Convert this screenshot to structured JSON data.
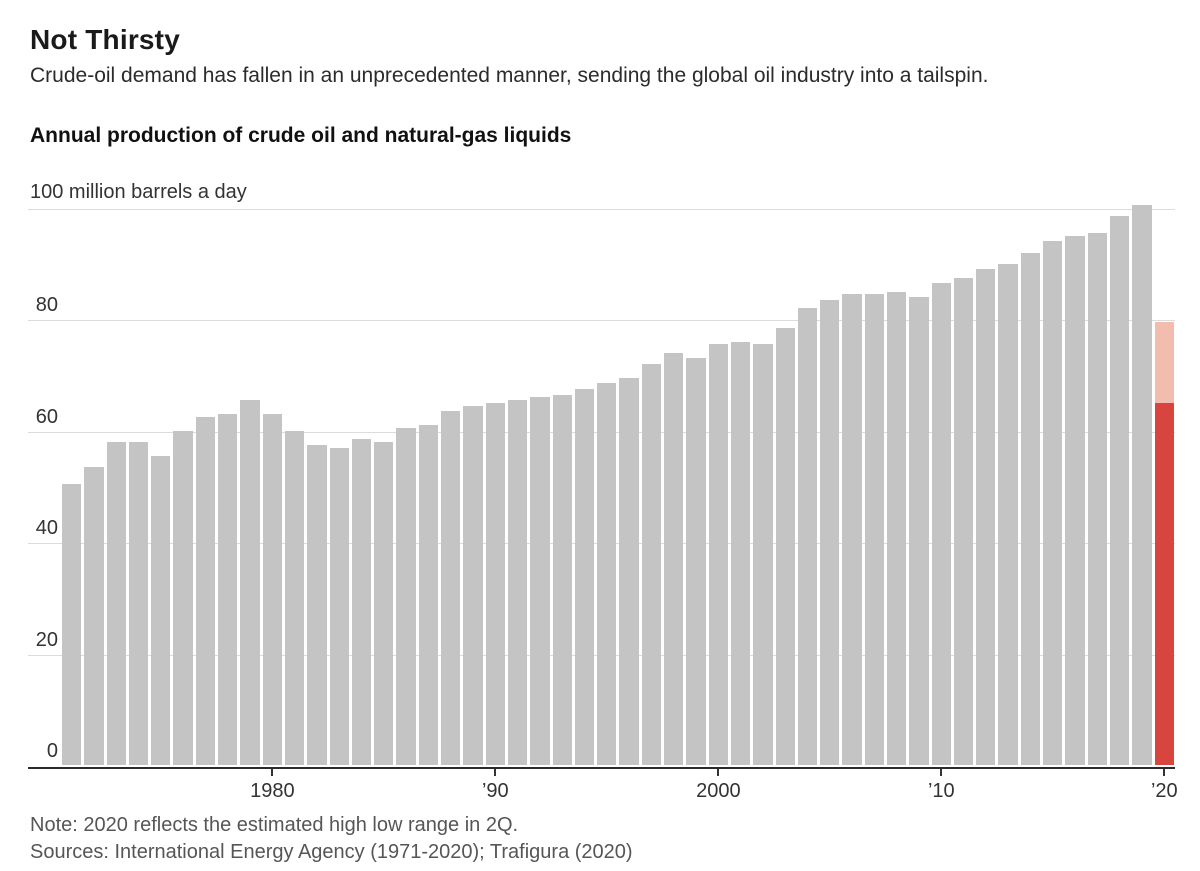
{
  "header": {
    "title": "Not Thirsty",
    "subtitle": "Crude-oil demand has fallen in an unprecedented manner, sending the global oil industry into a tailspin."
  },
  "chart_data": {
    "type": "bar",
    "title": "Not Thirsty",
    "subtitle": "Crude-oil demand has fallen in an unprecedented manner, sending the global oil industry into a tailspin.",
    "series_label": "Annual production of crude oil and natural-gas liquids",
    "unit_label": "100 million barrels a day",
    "ylabel": "million barrels a day",
    "ylim": [
      0,
      100
    ],
    "yticks": [
      0,
      20,
      40,
      60,
      80,
      100
    ],
    "grid": "horizontal",
    "legend_position": "none",
    "xticks": [
      {
        "year": 1980,
        "label": "1980"
      },
      {
        "year": 1990,
        "label": "’90"
      },
      {
        "year": 2000,
        "label": "2000"
      },
      {
        "year": 2010,
        "label": "’10"
      },
      {
        "year": 2020,
        "label": "’20"
      }
    ],
    "colors": {
      "bar": "#c4c4c4",
      "estimate_low": "#d8453f",
      "estimate_high": "#f2bcae",
      "gridline": "#dcdcdc",
      "axis": "#2b2b2b"
    },
    "bars": [
      {
        "year": 1971,
        "value": 50.5
      },
      {
        "year": 1972,
        "value": 53.5
      },
      {
        "year": 1973,
        "value": 58
      },
      {
        "year": 1974,
        "value": 58
      },
      {
        "year": 1975,
        "value": 55.5
      },
      {
        "year": 1976,
        "value": 60
      },
      {
        "year": 1977,
        "value": 62.5
      },
      {
        "year": 1978,
        "value": 63
      },
      {
        "year": 1979,
        "value": 65.5
      },
      {
        "year": 1980,
        "value": 63
      },
      {
        "year": 1981,
        "value": 60
      },
      {
        "year": 1982,
        "value": 57.5
      },
      {
        "year": 1983,
        "value": 57
      },
      {
        "year": 1984,
        "value": 58.5
      },
      {
        "year": 1985,
        "value": 58
      },
      {
        "year": 1986,
        "value": 60.5
      },
      {
        "year": 1987,
        "value": 61
      },
      {
        "year": 1988,
        "value": 63.5
      },
      {
        "year": 1989,
        "value": 64.5
      },
      {
        "year": 1990,
        "value": 65
      },
      {
        "year": 1991,
        "value": 65.5
      },
      {
        "year": 1992,
        "value": 66
      },
      {
        "year": 1993,
        "value": 66.5
      },
      {
        "year": 1994,
        "value": 67.5
      },
      {
        "year": 1995,
        "value": 68.5
      },
      {
        "year": 1996,
        "value": 69.5
      },
      {
        "year": 1997,
        "value": 72
      },
      {
        "year": 1998,
        "value": 74
      },
      {
        "year": 1999,
        "value": 73
      },
      {
        "year": 2000,
        "value": 75.5
      },
      {
        "year": 2001,
        "value": 76
      },
      {
        "year": 2002,
        "value": 75.5
      },
      {
        "year": 2003,
        "value": 78.5
      },
      {
        "year": 2004,
        "value": 82
      },
      {
        "year": 2005,
        "value": 83.5
      },
      {
        "year": 2006,
        "value": 84.5
      },
      {
        "year": 2007,
        "value": 84.5
      },
      {
        "year": 2008,
        "value": 85
      },
      {
        "year": 2009,
        "value": 84
      },
      {
        "year": 2010,
        "value": 86.5
      },
      {
        "year": 2011,
        "value": 87.5
      },
      {
        "year": 2012,
        "value": 89
      },
      {
        "year": 2013,
        "value": 90
      },
      {
        "year": 2014,
        "value": 92
      },
      {
        "year": 2015,
        "value": 94
      },
      {
        "year": 2016,
        "value": 95
      },
      {
        "year": 2017,
        "value": 95.5
      },
      {
        "year": 2018,
        "value": 98.5
      },
      {
        "year": 2019,
        "value": 100.5
      },
      {
        "year": 2020,
        "estimate": true,
        "low": 65,
        "high": 79.5
      }
    ]
  },
  "footer": {
    "note": "Note: 2020 reflects the estimated high low range in 2Q.",
    "sources": "Sources: International Energy Agency (1971-2020); Trafigura (2020)"
  }
}
